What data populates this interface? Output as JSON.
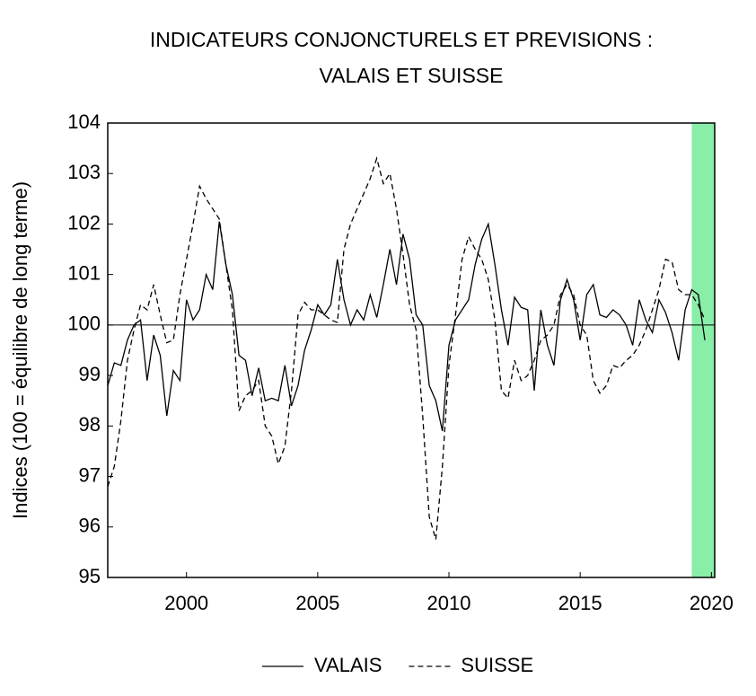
{
  "chart_data": {
    "type": "line",
    "title": [
      "INDICATEURS CONJONCTURELS ET PREVISIONS :",
      "VALAIS ET SUISSE"
    ],
    "y_label": "Indices (100 = équilibre de long terme)",
    "x": [
      1997,
      1997.25,
      1997.5,
      1997.75,
      1998,
      1998.25,
      1998.5,
      1998.75,
      1999,
      1999.25,
      1999.5,
      1999.75,
      2000,
      2000.25,
      2000.5,
      2000.75,
      2001,
      2001.25,
      2001.5,
      2001.75,
      2002,
      2002.25,
      2002.5,
      2002.75,
      2003,
      2003.25,
      2003.5,
      2003.75,
      2004,
      2004.25,
      2004.5,
      2004.75,
      2005,
      2005.25,
      2005.5,
      2005.75,
      2006,
      2006.25,
      2006.5,
      2006.75,
      2007,
      2007.25,
      2007.5,
      2007.75,
      2008,
      2008.25,
      2008.5,
      2008.75,
      2009,
      2009.25,
      2009.5,
      2009.75,
      2010,
      2010.25,
      2010.5,
      2010.75,
      2011,
      2011.25,
      2011.5,
      2011.75,
      2012,
      2012.25,
      2012.5,
      2012.75,
      2013,
      2013.25,
      2013.5,
      2013.75,
      2014,
      2014.25,
      2014.5,
      2014.75,
      2015,
      2015.25,
      2015.5,
      2015.75,
      2016,
      2016.25,
      2016.5,
      2016.75,
      2017,
      2017.25,
      2017.5,
      2017.75,
      2018,
      2018.25,
      2018.5,
      2018.75,
      2019,
      2019.25,
      2019.5,
      2019.75
    ],
    "series": [
      {
        "name": "VALAIS",
        "color": "#000000",
        "dash": "solid",
        "values": [
          98.8,
          99.25,
          99.2,
          99.7,
          100.0,
          100.1,
          98.9,
          99.8,
          99.4,
          98.2,
          99.1,
          98.9,
          100.5,
          100.1,
          100.3,
          101.0,
          100.7,
          102.05,
          101.2,
          100.6,
          99.4,
          99.3,
          98.6,
          99.15,
          98.5,
          98.55,
          98.5,
          99.2,
          98.4,
          98.8,
          99.5,
          99.9,
          100.4,
          100.2,
          100.4,
          101.3,
          100.5,
          100.0,
          100.3,
          100.1,
          100.6,
          100.15,
          100.8,
          101.5,
          100.8,
          101.8,
          101.3,
          100.2,
          100.0,
          98.8,
          98.5,
          97.9,
          99.6,
          100.1,
          100.3,
          100.5,
          101.2,
          101.7,
          102.0,
          101.2,
          100.3,
          99.6,
          100.55,
          100.35,
          100.3,
          98.7,
          100.3,
          99.6,
          99.2,
          100.5,
          100.9,
          100.5,
          99.7,
          100.6,
          100.8,
          100.2,
          100.15,
          100.3,
          100.2,
          100.0,
          99.6,
          100.5,
          100.1,
          99.85,
          100.5,
          100.25,
          99.85,
          99.3,
          100.3,
          100.7,
          100.6,
          99.7
        ]
      },
      {
        "name": "SUISSE",
        "color": "#000000",
        "dash": "dashed",
        "values": [
          96.8,
          97.2,
          98.1,
          99.3,
          99.9,
          100.4,
          100.3,
          100.8,
          100.2,
          99.65,
          99.7,
          100.6,
          101.3,
          102.0,
          102.75,
          102.5,
          102.3,
          102.1,
          101.2,
          100.3,
          98.3,
          98.6,
          98.7,
          98.9,
          98.0,
          97.8,
          97.25,
          97.6,
          98.7,
          100.2,
          100.45,
          100.3,
          100.3,
          100.2,
          100.1,
          100.05,
          101.5,
          102.0,
          102.3,
          102.6,
          102.9,
          103.3,
          102.8,
          103.0,
          102.3,
          101.4,
          100.4,
          99.9,
          98.2,
          96.2,
          95.75,
          97.2,
          99.2,
          100.2,
          101.3,
          101.75,
          101.5,
          101.3,
          100.9,
          100.1,
          98.7,
          98.55,
          99.3,
          98.9,
          99.0,
          99.3,
          99.7,
          99.8,
          100.0,
          100.6,
          100.8,
          100.6,
          100.0,
          99.8,
          98.9,
          98.65,
          98.8,
          99.2,
          99.15,
          99.3,
          99.4,
          99.6,
          99.9,
          100.3,
          100.7,
          101.3,
          101.25,
          100.7,
          100.6,
          100.6,
          100.4,
          100.1
        ]
      }
    ],
    "xlim": [
      1997,
      2020.125
    ],
    "xticks": [
      2000,
      2005,
      2010,
      2015,
      2020
    ],
    "ylim": [
      95,
      104
    ],
    "yticks": [
      95,
      96,
      97,
      98,
      99,
      100,
      101,
      102,
      103,
      104
    ],
    "reference_line": 100,
    "forecast_band": {
      "range": [
        2019.25,
        2020.125
      ],
      "color": "#88eea8"
    },
    "legend": "bottom"
  }
}
